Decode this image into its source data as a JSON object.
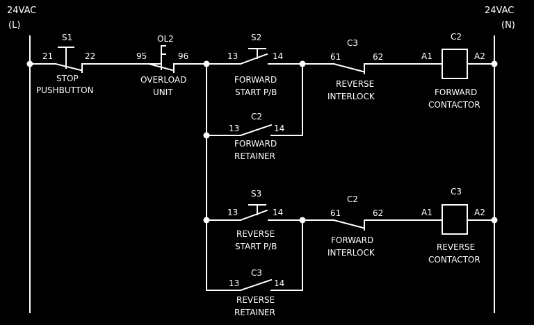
{
  "supply": {
    "left_voltage": "24VAC",
    "left_label": "(L)",
    "right_voltage": "24VAC",
    "right_label": "(N)"
  },
  "stop_pb": {
    "tag": "S1",
    "term_a": "21",
    "term_b": "22",
    "name1": "STOP",
    "name2": "PUSHBUTTON"
  },
  "overload": {
    "tag": "OL2",
    "term_a": "95",
    "term_b": "96",
    "name1": "OVERLOAD",
    "name2": "UNIT"
  },
  "fwd_start": {
    "tag": "S2",
    "term_a": "13",
    "term_b": "14",
    "name1": "FORWARD",
    "name2": "START P/B"
  },
  "rev_interlock": {
    "tag": "C3",
    "term_a": "61",
    "term_b": "62",
    "name1": "REVERSE",
    "name2": "INTERLOCK"
  },
  "fwd_coil": {
    "tag": "C2",
    "term_a": "A1",
    "term_b": "A2",
    "name1": "FORWARD",
    "name2": "CONTACTOR"
  },
  "fwd_retainer": {
    "tag": "C2",
    "term_a": "13",
    "term_b": "14",
    "name1": "FORWARD",
    "name2": "RETAINER"
  },
  "rev_start": {
    "tag": "S3",
    "term_a": "13",
    "term_b": "14",
    "name1": "REVERSE",
    "name2": "START P/B"
  },
  "fwd_interlock": {
    "tag": "C2",
    "term_a": "61",
    "term_b": "62",
    "name1": "FORWARD",
    "name2": "INTERLOCK"
  },
  "rev_coil": {
    "tag": "C3",
    "term_a": "A1",
    "term_b": "A2",
    "name1": "REVERSE",
    "name2": "CONTACTOR"
  },
  "rev_retainer": {
    "tag": "C3",
    "term_a": "13",
    "term_b": "14",
    "name1": "REVERSE",
    "name2": "RETAINER"
  }
}
